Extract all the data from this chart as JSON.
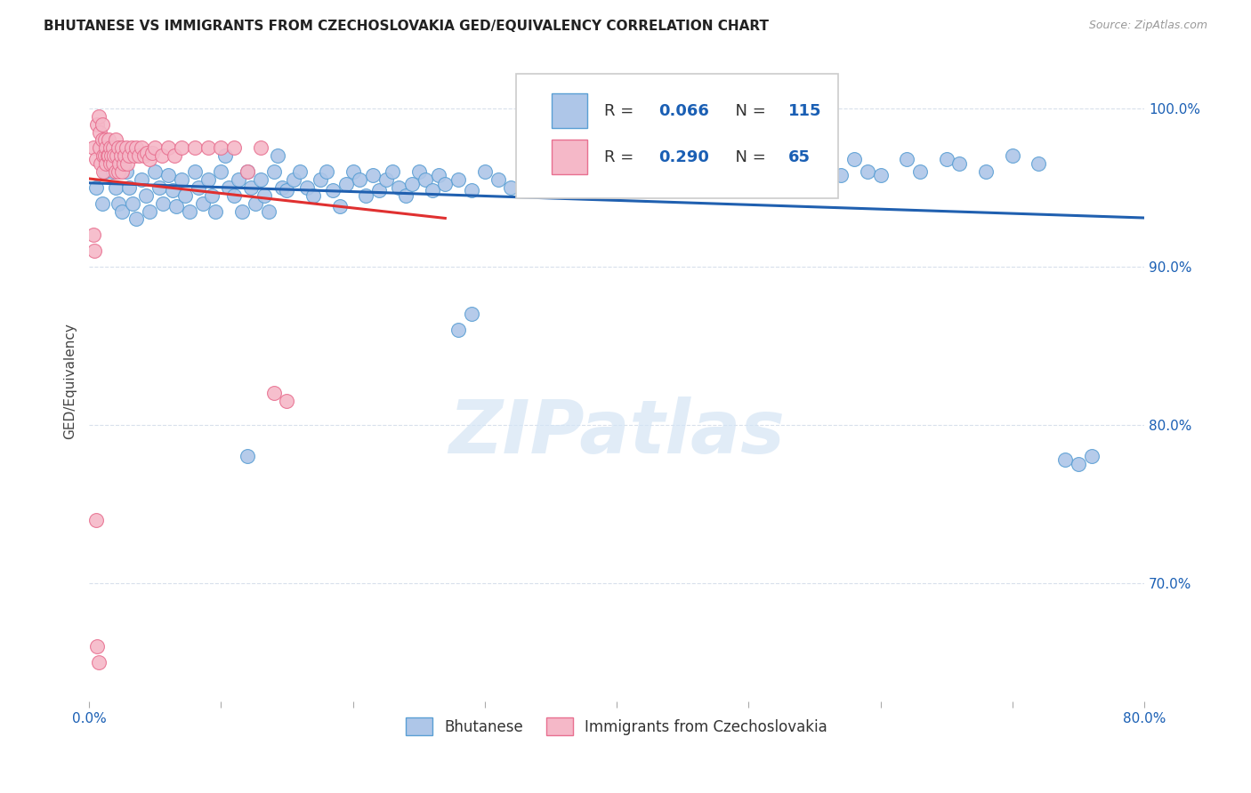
{
  "title": "BHUTANESE VS IMMIGRANTS FROM CZECHOSLOVAKIA GED/EQUIVALENCY CORRELATION CHART",
  "source": "Source: ZipAtlas.com",
  "ylabel": "GED/Equivalency",
  "ytick_labels": [
    "100.0%",
    "90.0%",
    "80.0%",
    "70.0%"
  ],
  "ytick_values": [
    1.0,
    0.9,
    0.8,
    0.7
  ],
  "xlim": [
    0.0,
    0.8
  ],
  "ylim": [
    0.625,
    1.03
  ],
  "legend_blue_r": "0.066",
  "legend_blue_n": "115",
  "legend_pink_r": "0.290",
  "legend_pink_n": "65",
  "legend_label_blue": "Bhutanese",
  "legend_label_pink": "Immigrants from Czechoslovakia",
  "blue_color": "#aec6e8",
  "pink_color": "#f5b8c8",
  "blue_edge_color": "#5a9fd4",
  "pink_edge_color": "#e87090",
  "blue_line_color": "#2060b0",
  "pink_line_color": "#e03030",
  "background_color": "#ffffff",
  "grid_color": "#d8e0ec",
  "watermark_color": "#d5e5f5",
  "blue_scatter_x": [
    0.005,
    0.01,
    0.012,
    0.015,
    0.018,
    0.02,
    0.022,
    0.025,
    0.028,
    0.03,
    0.033,
    0.036,
    0.04,
    0.043,
    0.046,
    0.05,
    0.053,
    0.056,
    0.06,
    0.063,
    0.066,
    0.07,
    0.073,
    0.076,
    0.08,
    0.083,
    0.086,
    0.09,
    0.093,
    0.096,
    0.1,
    0.103,
    0.106,
    0.11,
    0.113,
    0.116,
    0.12,
    0.123,
    0.126,
    0.13,
    0.133,
    0.136,
    0.14,
    0.143,
    0.146,
    0.15,
    0.155,
    0.16,
    0.165,
    0.17,
    0.175,
    0.18,
    0.185,
    0.19,
    0.195,
    0.2,
    0.205,
    0.21,
    0.215,
    0.22,
    0.225,
    0.23,
    0.235,
    0.24,
    0.245,
    0.25,
    0.255,
    0.26,
    0.265,
    0.27,
    0.28,
    0.29,
    0.3,
    0.31,
    0.32,
    0.33,
    0.34,
    0.35,
    0.36,
    0.37,
    0.38,
    0.39,
    0.4,
    0.41,
    0.42,
    0.43,
    0.44,
    0.45,
    0.46,
    0.47,
    0.48,
    0.49,
    0.5,
    0.51,
    0.52,
    0.53,
    0.55,
    0.56,
    0.57,
    0.58,
    0.59,
    0.6,
    0.62,
    0.63,
    0.65,
    0.66,
    0.68,
    0.7,
    0.72,
    0.74,
    0.75,
    0.76,
    0.28,
    0.29,
    0.12
  ],
  "blue_scatter_y": [
    0.95,
    0.94,
    0.96,
    0.97,
    0.96,
    0.95,
    0.94,
    0.935,
    0.96,
    0.95,
    0.94,
    0.93,
    0.955,
    0.945,
    0.935,
    0.96,
    0.95,
    0.94,
    0.958,
    0.948,
    0.938,
    0.955,
    0.945,
    0.935,
    0.96,
    0.95,
    0.94,
    0.955,
    0.945,
    0.935,
    0.96,
    0.97,
    0.95,
    0.945,
    0.955,
    0.935,
    0.96,
    0.95,
    0.94,
    0.955,
    0.945,
    0.935,
    0.96,
    0.97,
    0.95,
    0.948,
    0.955,
    0.96,
    0.95,
    0.945,
    0.955,
    0.96,
    0.948,
    0.938,
    0.952,
    0.96,
    0.955,
    0.945,
    0.958,
    0.948,
    0.955,
    0.96,
    0.95,
    0.945,
    0.952,
    0.96,
    0.955,
    0.948,
    0.958,
    0.952,
    0.955,
    0.948,
    0.96,
    0.955,
    0.95,
    0.958,
    0.952,
    0.96,
    0.955,
    0.948,
    0.958,
    0.952,
    0.955,
    0.96,
    0.955,
    0.96,
    0.95,
    0.96,
    0.955,
    0.95,
    0.96,
    0.955,
    0.96,
    0.955,
    0.96,
    0.97,
    0.96,
    0.965,
    0.958,
    0.968,
    0.96,
    0.958,
    0.968,
    0.96,
    0.968,
    0.965,
    0.96,
    0.97,
    0.965,
    0.778,
    0.775,
    0.78,
    0.86,
    0.87,
    0.78
  ],
  "pink_scatter_x": [
    0.003,
    0.005,
    0.006,
    0.007,
    0.008,
    0.008,
    0.009,
    0.01,
    0.01,
    0.011,
    0.011,
    0.012,
    0.012,
    0.013,
    0.013,
    0.014,
    0.015,
    0.015,
    0.016,
    0.016,
    0.017,
    0.018,
    0.018,
    0.019,
    0.02,
    0.02,
    0.021,
    0.022,
    0.022,
    0.023,
    0.024,
    0.025,
    0.025,
    0.026,
    0.027,
    0.028,
    0.029,
    0.03,
    0.032,
    0.034,
    0.036,
    0.038,
    0.04,
    0.042,
    0.044,
    0.046,
    0.048,
    0.05,
    0.055,
    0.06,
    0.065,
    0.07,
    0.08,
    0.09,
    0.1,
    0.11,
    0.12,
    0.13,
    0.14,
    0.15,
    0.003,
    0.004,
    0.005,
    0.006,
    0.007
  ],
  "pink_scatter_y": [
    0.975,
    0.968,
    0.99,
    0.995,
    0.985,
    0.975,
    0.965,
    0.99,
    0.98,
    0.97,
    0.96,
    0.98,
    0.97,
    0.975,
    0.965,
    0.97,
    0.98,
    0.97,
    0.975,
    0.965,
    0.97,
    0.975,
    0.965,
    0.97,
    0.98,
    0.96,
    0.97,
    0.975,
    0.96,
    0.965,
    0.97,
    0.975,
    0.96,
    0.965,
    0.97,
    0.975,
    0.965,
    0.97,
    0.975,
    0.97,
    0.975,
    0.97,
    0.975,
    0.97,
    0.972,
    0.968,
    0.972,
    0.975,
    0.97,
    0.975,
    0.97,
    0.975,
    0.975,
    0.975,
    0.975,
    0.975,
    0.96,
    0.975,
    0.82,
    0.815,
    0.92,
    0.91,
    0.74,
    0.66,
    0.65
  ]
}
